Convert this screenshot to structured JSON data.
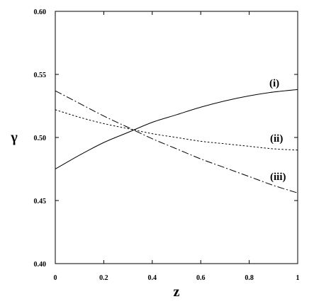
{
  "chart_data": {
    "type": "line",
    "title": "",
    "xlabel": "z",
    "ylabel": "γ",
    "xlim": [
      0,
      1
    ],
    "ylim": [
      0.4,
      0.6
    ],
    "xticks": [
      0,
      0.2,
      0.4,
      0.6,
      0.8,
      1
    ],
    "xtick_labels": [
      "0",
      "0.2",
      "0.4",
      "0.6",
      "0.8",
      "1"
    ],
    "yticks": [
      0.4,
      0.45,
      0.5,
      0.55,
      0.6
    ],
    "ytick_labels": [
      "0.40",
      "0.45",
      "0.50",
      "0.55",
      "0.60"
    ],
    "grid": false,
    "legend": "none",
    "series": [
      {
        "name": "(i)",
        "style": "solid",
        "color": "#000000",
        "x": [
          0,
          0.1,
          0.2,
          0.3,
          0.4,
          0.5,
          0.6,
          0.7,
          0.8,
          0.9,
          1.0
        ],
        "y": [
          0.475,
          0.486,
          0.496,
          0.504,
          0.512,
          0.518,
          0.524,
          0.529,
          0.533,
          0.536,
          0.538
        ]
      },
      {
        "name": "(ii)",
        "style": "dotted",
        "color": "#000000",
        "x": [
          0,
          0.1,
          0.2,
          0.3,
          0.4,
          0.5,
          0.6,
          0.7,
          0.8,
          0.9,
          1.0
        ],
        "y": [
          0.522,
          0.516,
          0.511,
          0.507,
          0.503,
          0.5,
          0.497,
          0.495,
          0.493,
          0.491,
          0.49
        ]
      },
      {
        "name": "(iii)",
        "style": "dashdot",
        "color": "#000000",
        "x": [
          0,
          0.1,
          0.2,
          0.3,
          0.4,
          0.5,
          0.6,
          0.7,
          0.8,
          0.9,
          1.0
        ],
        "y": [
          0.537,
          0.527,
          0.517,
          0.508,
          0.499,
          0.491,
          0.483,
          0.476,
          0.469,
          0.462,
          0.456
        ]
      }
    ]
  }
}
